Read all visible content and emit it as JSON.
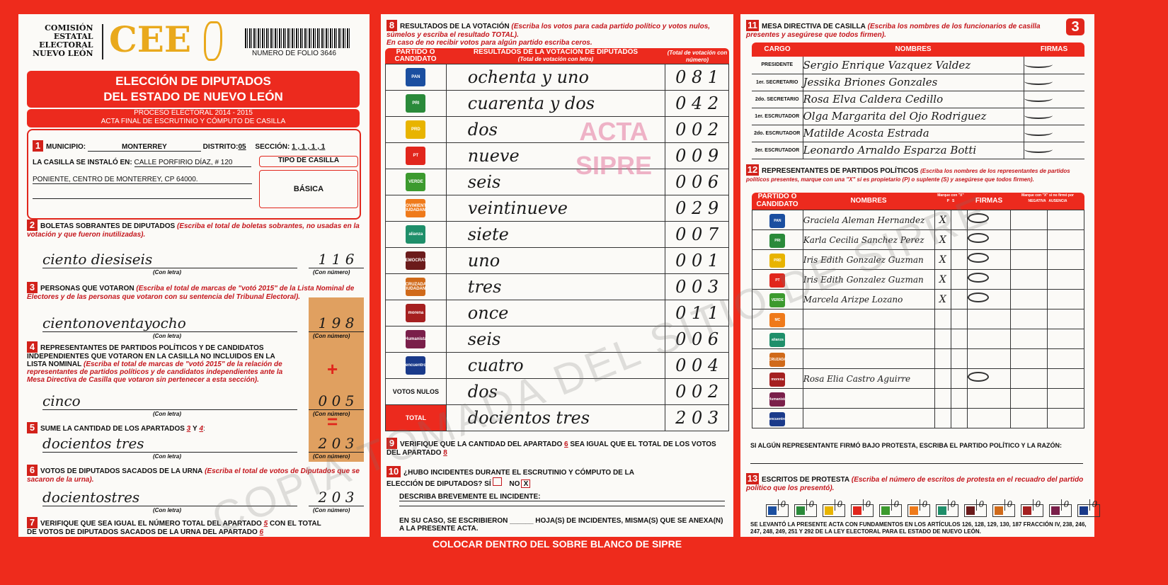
{
  "header": {
    "org": [
      "COMISIÓN",
      "ESTATAL",
      "ELECTORAL",
      "NUEVO LEÓN"
    ],
    "logo_text": "CEE",
    "folio": "NUMERO DE FOLIO 3646",
    "title1": "ELECCIÓN DE DIPUTADOS",
    "title2": "DEL ESTADO DE NUEVO LEÓN",
    "process": "PROCESO ELECTORAL  2014 - 2015",
    "acta": "ACTA FINAL DE ESCRUTINIO Y CÓMPUTO DE CASILLA",
    "page_badge": "3"
  },
  "s1": {
    "num": "1",
    "municipio_label": "MUNICIPIO:",
    "municipio": "MONTERREY",
    "distrito_label": "DISTRITO:",
    "distrito": "05",
    "seccion_label": "SECCIÓN:",
    "seccion": "1 , 1 , 1 , 1",
    "lugar_label": "LA CASILLA SE INSTALÓ EN:",
    "lugar1": "CALLE PORFIRIO DÍAZ, # 120",
    "lugar2": "PONIENTE, CENTRO DE MONTERREY, CP 64000.",
    "tipo_label": "TIPO DE CASILLA",
    "tipo": "BÁSICA"
  },
  "s2": {
    "num": "2",
    "title": "BOLETAS SOBRANTES DE DIPUTADOS",
    "note": "(Escriba el total de boletas sobrantes, no usadas en la votación y que fueron inutilizadas).",
    "letra": "ciento diesiseis",
    "numero": "1 1 6",
    "cap_letra": "(Con letra)",
    "cap_num": "(Con número)"
  },
  "s3": {
    "num": "3",
    "title": "PERSONAS QUE VOTARON",
    "note": "(Escriba el total de marcas de \"votó 2015\" de la Lista Nominal de Electores y de las personas que votaron con su sentencia del Tribunal Electoral).",
    "letra": "cientonoventayocho",
    "numero": "1 9 8",
    "cap_letra": "(Con letra)",
    "cap_num": "(Con número)"
  },
  "s4": {
    "num": "4",
    "title": "REPRESENTANTES DE PARTIDOS POLÍTICOS Y DE CANDIDATOS INDEPENDIENTES QUE VOTARON EN LA CASILLA NO INCLUIDOS EN LA LISTA NOMINAL",
    "note": "(Escriba el total de marcas de \"votó 2015\" de la relación de representantes de partidos políticos y de candidatos independientes ante la Mesa Directiva de Casilla que votaron sin pertenecer a esta sección).",
    "letra": "cinco",
    "numero": "0 0 5",
    "plus": "+",
    "cap_letra": "(Con letra)",
    "cap_num": "(Con número)"
  },
  "s5": {
    "num": "5",
    "title": "SUME LA CANTIDAD DE LOS APARTADOS",
    "a": "3",
    "y": "Y",
    "b": "4",
    "letra": "docientos tres",
    "numero": "2 0 3",
    "eq": "=",
    "cap_letra": "(Con letra)",
    "cap_num": "(Con número)"
  },
  "s6": {
    "num": "6",
    "title": "VOTOS DE DIPUTADOS SACADOS DE LA URNA",
    "note": "(Escriba el total de votos de Diputados que se sacaron de la urna).",
    "letra": "docientostres",
    "numero": "2 0 3",
    "cap_letra": "(Con letra)",
    "cap_num": "(Con número)"
  },
  "s7": {
    "num": "7",
    "text1": "VERIFIQUE QUE SEA IGUAL EL NÚMERO TOTAL DEL APARTADO",
    "a": "5",
    "text2": "CON EL TOTAL DE VOTOS DE DIPUTADOS SACADOS DE LA URNA DEL APARTADO",
    "b": "6"
  },
  "s8": {
    "num": "8",
    "title": "RESULTADOS DE LA VOTACIÓN",
    "note1": "(Escriba los votos para cada partido político y votos nulos, súmelos y escriba el resultado TOTAL).",
    "note2": "En caso de no recibir votos para algún partido escriba ceros.",
    "col1": "PARTIDO O CANDIDATO",
    "col2": "RESULTADOS DE LA VOTACIÓN DE DIPUTADOS",
    "col2_sub": "(Total de votación con letra)",
    "col3": "(Total de votación con número)",
    "rows": [
      {
        "party": "PAN",
        "color": "#1b4fa0",
        "letra": "ochenta y uno",
        "numero": "0 8 1"
      },
      {
        "party": "PRI",
        "color": "#2a8a3a",
        "letra": "cuarenta y dos",
        "numero": "0 4 2"
      },
      {
        "party": "PRD",
        "color": "#e8b400",
        "letra": "dos",
        "numero": "0 0 2"
      },
      {
        "party": "PT",
        "color": "#e1261c",
        "letra": "nueve",
        "numero": "0 0 9"
      },
      {
        "party": "VERDE",
        "color": "#3c9a2e",
        "letra": "seis",
        "numero": "0 0 6"
      },
      {
        "party": "MOVIMIENTO CIUDADANO",
        "color": "#ef7a1a",
        "letra": "veintinueve",
        "numero": "0 2 9"
      },
      {
        "party": "alianza",
        "color": "#1f8f6a",
        "letra": "siete",
        "numero": "0 0 7"
      },
      {
        "party": "DEMOCRATA",
        "color": "#6b1b1b",
        "letra": "uno",
        "numero": "0 0 1"
      },
      {
        "party": "CRUZADA CIUDADANA",
        "color": "#d06a1a",
        "letra": "tres",
        "numero": "0 0 3"
      },
      {
        "party": "morena",
        "color": "#a52020",
        "letra": "once",
        "numero": "0 1 1"
      },
      {
        "party": "Humanista",
        "color": "#7a1f4a",
        "letra": "seis",
        "numero": "0 0 6"
      },
      {
        "party": "encuentro",
        "color": "#1a3a8a",
        "letra": "cuatro",
        "numero": "0 0 4"
      },
      {
        "party": "VOTOS NULOS",
        "color": "",
        "letra": "dos",
        "numero": "0 0 2"
      },
      {
        "party": "TOTAL",
        "color": "",
        "letra": "docientos tres",
        "numero": "2 0 3"
      }
    ]
  },
  "s9": {
    "num": "9",
    "text1": "VERIFIQUE QUE LA CANTIDAD DEL APARTADO",
    "a": "6",
    "text2": "SEA IGUAL QUE EL TOTAL DE LOS VOTOS DEL APARTADO",
    "b": "8"
  },
  "s10": {
    "num": "10",
    "question": "¿HUBO INCIDENTES DURANTE EL ESCRUTINIO Y CÓMPUTO DE LA ELECCIÓN DE DIPUTADOS?",
    "si": "SÍ",
    "no": "NO",
    "mark": "X",
    "describe": "DESCRIBA BREVEMENTE EL INCIDENTE:",
    "anexo": "EN SU CASO, SE ESCRIBIERON ______ HOJA(S) DE INCIDENTES, MISMA(S) QUE SE ANEXA(N) A LA PRESENTE ACTA."
  },
  "footer_banner": "COLOCAR DENTRO DEL SOBRE BLANCO DE SIPRE",
  "watermarks": {
    "diag": "COPIA TOMADA DEL SITIO DE SIPRE",
    "acta": "ACTA",
    "sipre": "SIPRE"
  },
  "s11": {
    "num": "11",
    "title": "MESA DIRECTIVA DE CASILLA",
    "note": "(Escriba los nombres de los funcionarios de casilla presentes y asegúrese que todos firmen).",
    "col_cargo": "CARGO",
    "col_nombres": "NOMBRES",
    "col_firmas": "FIRMAS",
    "rows": [
      {
        "cargo": "PRESIDENTE",
        "nombre": "Sergio Enrique Vazquez Valdez"
      },
      {
        "cargo": "1er. SECRETARIO",
        "nombre": "Jessika Briones Gonzales"
      },
      {
        "cargo": "2do. SECRETARIO",
        "nombre": "Rosa Elva Caldera Cedillo"
      },
      {
        "cargo": "1er. ESCRUTADOR",
        "nombre": "Olga Margarita del Ojo Rodriguez"
      },
      {
        "cargo": "2do. ESCRUTADOR",
        "nombre": "Matilde Acosta Estrada"
      },
      {
        "cargo": "3er. ESCRUTADOR",
        "nombre": "Leonardo Arnaldo Esparza Botti"
      }
    ]
  },
  "s12": {
    "num": "12",
    "title": "REPRESENTANTES DE PARTIDOS POLÍTICOS",
    "note": "(Escriba los nombres de los representantes de partidos políticos presentes, marque con una \"X\" si es propietario (P) o suplente (S) y asegúrese que todos firmen).",
    "col_partido": "PARTIDO O CANDIDATO",
    "col_nombres": "NOMBRES",
    "col_marque": "Marque con \"X\"",
    "col_p": "P",
    "col_s": "S",
    "col_firmas": "FIRMAS",
    "col_marque2": "Marque con \"X\" si no firmó por",
    "col_negativa": "NEGATIVA",
    "col_ausencia": "AUSENCIA",
    "rows": [
      {
        "party": "PAN",
        "color": "#1b4fa0",
        "nombre": "Graciela Aleman Hernandez",
        "p": "X"
      },
      {
        "party": "PRI",
        "color": "#2a8a3a",
        "nombre": "Karla Cecilia Sanchez Perez",
        "p": "X"
      },
      {
        "party": "PRD",
        "color": "#e8b400",
        "nombre": "Iris Edith Gonzalez Guzman",
        "p": "X"
      },
      {
        "party": "PT",
        "color": "#e1261c",
        "nombre": "Iris Edith Gonzalez Guzman",
        "p": "X"
      },
      {
        "party": "VERDE",
        "color": "#3c9a2e",
        "nombre": "Marcela Arizpe Lozano",
        "p": "X"
      },
      {
        "party": "MC",
        "color": "#ef7a1a",
        "nombre": "",
        "p": ""
      },
      {
        "party": "alianza",
        "color": "#1f8f6a",
        "nombre": "",
        "p": ""
      },
      {
        "party": "CRUZADA",
        "color": "#d06a1a",
        "nombre": "",
        "p": ""
      },
      {
        "party": "morena",
        "color": "#a52020",
        "nombre": "Rosa Elia Castro Aguirre",
        "p": ""
      },
      {
        "party": "Humanista",
        "color": "#7a1f4a",
        "nombre": "",
        "p": ""
      },
      {
        "party": "encuentro",
        "color": "#1a3a8a",
        "nombre": "",
        "p": ""
      }
    ],
    "protesta": "SI ALGÚN REPRESENTANTE FIRMÓ BAJO PROTESTA, ESCRIBA EL PARTIDO POLÍTICO Y LA RAZÓN:"
  },
  "s13": {
    "num": "13",
    "title": "ESCRITOS DE PROTESTA",
    "note": "(Escriba el número de escritos de protesta en el recuadro del partido político que los presentó).",
    "counts": [
      "0",
      "0",
      "0",
      "0",
      "0",
      "0",
      "0",
      "0",
      "0",
      "0",
      "0",
      "0"
    ],
    "legal": "SE LEVANTÓ LA PRESENTE ACTA CON FUNDAMENTOS EN LOS ARTÍCULOS 126, 128, 129, 130, 187 FRACCIÓN IV, 238, 246, 247, 248, 249, 251 Y 292 DE LA LEY ELECTORAL PARA EL ESTADO DE NUEVO LEÓN."
  }
}
